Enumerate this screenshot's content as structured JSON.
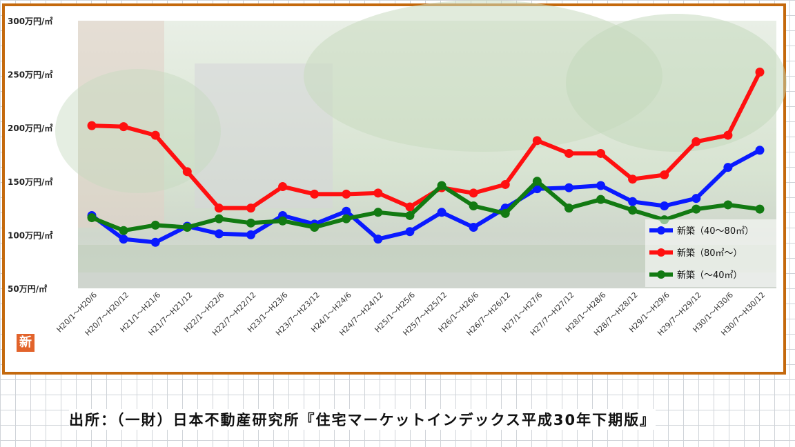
{
  "chart_data": {
    "type": "line",
    "ylim": [
      50,
      300
    ],
    "y_ticks": [
      "300万円/㎡",
      "250万円/㎡",
      "200万円/㎡",
      "150万円/㎡",
      "100万円/㎡",
      "50万円/㎡"
    ],
    "y_tick_values": [
      300,
      250,
      200,
      150,
      100,
      50
    ],
    "categories": [
      "H20/1～H20/6",
      "H20/7～H20/12",
      "H21/1～H21/6",
      "H21/7～H21/12",
      "H22/1～H22/6",
      "H22/7～H22/12",
      "H23/1～H23/6",
      "H23/7～H23/12",
      "H24/1～H24/6",
      "H24/7～H24/12",
      "H25/1～H25/6",
      "H25/7～H25/12",
      "H26/1～H26/6",
      "H26/7～H26/12",
      "H27/1～H27/6",
      "H27/7～H27/12",
      "H28/1～H28/6",
      "H28/7～H28/12",
      "H29/1～H29/6",
      "H29/7～H29/12",
      "H30/1～H30/6",
      "H30/7～H30/12"
    ],
    "series": [
      {
        "name": "新築（40～80㎡）",
        "color": "#0a1aff",
        "values": [
          118,
          96,
          93,
          108,
          101,
          100,
          118,
          110,
          122,
          96,
          103,
          121,
          107,
          125,
          143,
          144,
          146,
          131,
          127,
          134,
          163,
          179
        ]
      },
      {
        "name": "新築（80㎡～）",
        "color": "#ff1010",
        "values": [
          202,
          201,
          193,
          159,
          125,
          125,
          145,
          138,
          138,
          139,
          126,
          144,
          139,
          147,
          188,
          176,
          176,
          152,
          156,
          187,
          193,
          252
        ]
      },
      {
        "name": "新築（～40㎡）",
        "color": "#127a12",
        "values": [
          116,
          104,
          109,
          107,
          115,
          111,
          113,
          107,
          115,
          121,
          118,
          146,
          127,
          120,
          150,
          125,
          133,
          123,
          114,
          124,
          128,
          124
        ]
      }
    ],
    "legend_position": "bottom-right",
    "grid": false
  },
  "logo_text": "新",
  "source_text": "出所：（一財）日本不動産研究所『住宅マーケットインデックス平成30年下期版』"
}
